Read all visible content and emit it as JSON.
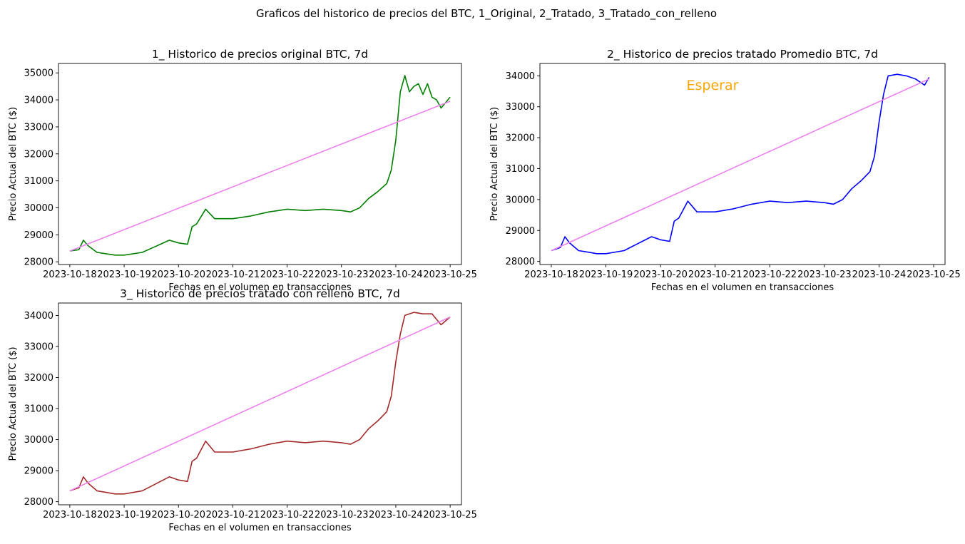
{
  "figure": {
    "suptitle": "Graficos del historico de precios del BTC, 1_Original, 2_Tratado, 3_Tratado_con_relleno"
  },
  "colors": {
    "trend": "#ee82ee",
    "panel1": "#008000",
    "panel2": "#0000ff",
    "panel3": "#a52a2a",
    "annotation": "#ffa500"
  },
  "chart_data": [
    {
      "type": "line",
      "title": "1_ Historico de precios original BTC, 7d",
      "xlabel": "Fechas en el volumen en transacciones",
      "ylabel": "Precio Actual del BTC ($)",
      "x_ticks": [
        "2023-10-18",
        "2023-10-19",
        "2023-10-20",
        "2023-10-21",
        "2023-10-22",
        "2023-10-23",
        "2023-10-24",
        "2023-10-25"
      ],
      "y_ticks": [
        28000,
        29000,
        30000,
        31000,
        32000,
        33000,
        34000,
        35000
      ],
      "ylim": [
        27900,
        35350
      ],
      "grid": false,
      "series": [
        {
          "color": "#008000",
          "x": [
            "2023-10-18T00:00",
            "2023-10-18T04:00",
            "2023-10-18T06:00",
            "2023-10-18T08:00",
            "2023-10-18T12:00",
            "2023-10-18T16:00",
            "2023-10-18T20:00",
            "2023-10-19T00:00",
            "2023-10-19T08:00",
            "2023-10-19T12:00",
            "2023-10-19T16:00",
            "2023-10-19T20:00",
            "2023-10-20T00:00",
            "2023-10-20T04:00",
            "2023-10-20T06:00",
            "2023-10-20T08:00",
            "2023-10-20T12:00",
            "2023-10-20T16:00",
            "2023-10-21T00:00",
            "2023-10-21T08:00",
            "2023-10-21T16:00",
            "2023-10-22T00:00",
            "2023-10-22T08:00",
            "2023-10-22T16:00",
            "2023-10-23T00:00",
            "2023-10-23T04:00",
            "2023-10-23T08:00",
            "2023-10-23T12:00",
            "2023-10-23T16:00",
            "2023-10-23T20:00",
            "2023-10-23T22:00",
            "2023-10-24T00:00",
            "2023-10-24T02:00",
            "2023-10-24T04:00",
            "2023-10-24T06:00",
            "2023-10-24T08:00",
            "2023-10-24T10:00",
            "2023-10-24T12:00",
            "2023-10-24T14:00",
            "2023-10-24T16:00",
            "2023-10-24T18:00",
            "2023-10-24T20:00",
            "2023-10-24T22:00",
            "2023-10-25T00:00"
          ],
          "values": [
            28400,
            28450,
            28800,
            28600,
            28350,
            28300,
            28250,
            28250,
            28350,
            28500,
            28650,
            28800,
            28700,
            28650,
            29300,
            29400,
            29950,
            29600,
            29600,
            29700,
            29850,
            29950,
            29900,
            29950,
            29900,
            29850,
            30000,
            30350,
            30600,
            30900,
            31400,
            32500,
            34300,
            34900,
            34300,
            34500,
            34600,
            34200,
            34600,
            34100,
            34000,
            33700,
            33900,
            34100
          ]
        },
        {
          "color": "#ee82ee",
          "x": [
            "2023-10-18T00:00",
            "2023-10-25T00:00"
          ],
          "values": [
            28400,
            33950
          ]
        }
      ]
    },
    {
      "type": "line",
      "title": "2_ Historico de precios tratado Promedio BTC, 7d",
      "xlabel": "Fechas en el volumen en transacciones",
      "ylabel": "Precio Actual del BTC ($)",
      "annotation": "Esperar",
      "x_ticks": [
        "2023-10-18",
        "2023-10-19",
        "2023-10-20",
        "2023-10-21",
        "2023-10-22",
        "2023-10-23",
        "2023-10-24",
        "2023-10-25"
      ],
      "y_ticks": [
        28000,
        29000,
        30000,
        31000,
        32000,
        33000,
        34000
      ],
      "ylim": [
        27900,
        34400
      ],
      "grid": false,
      "series": [
        {
          "color": "#0000ff",
          "x": [
            "2023-10-18T00:00",
            "2023-10-18T04:00",
            "2023-10-18T06:00",
            "2023-10-18T08:00",
            "2023-10-18T12:00",
            "2023-10-18T16:00",
            "2023-10-18T20:00",
            "2023-10-19T00:00",
            "2023-10-19T08:00",
            "2023-10-19T12:00",
            "2023-10-19T16:00",
            "2023-10-19T20:00",
            "2023-10-20T00:00",
            "2023-10-20T04:00",
            "2023-10-20T06:00",
            "2023-10-20T08:00",
            "2023-10-20T12:00",
            "2023-10-20T16:00",
            "2023-10-21T00:00",
            "2023-10-21T08:00",
            "2023-10-21T16:00",
            "2023-10-22T00:00",
            "2023-10-22T08:00",
            "2023-10-22T16:00",
            "2023-10-23T00:00",
            "2023-10-23T04:00",
            "2023-10-23T08:00",
            "2023-10-23T12:00",
            "2023-10-23T16:00",
            "2023-10-23T20:00",
            "2023-10-23T22:00",
            "2023-10-24T00:00",
            "2023-10-24T02:00",
            "2023-10-24T04:00",
            "2023-10-24T08:00",
            "2023-10-24T12:00",
            "2023-10-24T16:00",
            "2023-10-24T20:00",
            "2023-10-24T22:00"
          ],
          "values": [
            28350,
            28450,
            28800,
            28600,
            28350,
            28300,
            28250,
            28250,
            28350,
            28500,
            28650,
            28800,
            28700,
            28650,
            29300,
            29400,
            29950,
            29600,
            29600,
            29700,
            29850,
            29950,
            29900,
            29950,
            29900,
            29850,
            30000,
            30350,
            30600,
            30900,
            31400,
            32500,
            33400,
            34000,
            34050,
            34000,
            33900,
            33700,
            33950
          ]
        },
        {
          "color": "#ee82ee",
          "x": [
            "2023-10-18T00:00",
            "2023-10-24T22:00"
          ],
          "values": [
            28350,
            33900
          ]
        }
      ]
    },
    {
      "type": "line",
      "title": "3_ Historico de precios tratado con relleno BTC, 7d",
      "xlabel": "Fechas en el volumen en transacciones",
      "ylabel": "Precio Actual del BTC ($)",
      "x_ticks": [
        "2023-10-18",
        "2023-10-19",
        "2023-10-20",
        "2023-10-21",
        "2023-10-22",
        "2023-10-23",
        "2023-10-24",
        "2023-10-25"
      ],
      "y_ticks": [
        28000,
        29000,
        30000,
        31000,
        32000,
        33000,
        34000
      ],
      "ylim": [
        27900,
        34400
      ],
      "grid": false,
      "series": [
        {
          "color": "#a52a2a",
          "x": [
            "2023-10-18T00:00",
            "2023-10-18T04:00",
            "2023-10-18T06:00",
            "2023-10-18T08:00",
            "2023-10-18T12:00",
            "2023-10-18T16:00",
            "2023-10-18T20:00",
            "2023-10-19T00:00",
            "2023-10-19T08:00",
            "2023-10-19T12:00",
            "2023-10-19T16:00",
            "2023-10-19T20:00",
            "2023-10-20T00:00",
            "2023-10-20T04:00",
            "2023-10-20T06:00",
            "2023-10-20T08:00",
            "2023-10-20T12:00",
            "2023-10-20T16:00",
            "2023-10-21T00:00",
            "2023-10-21T08:00",
            "2023-10-21T16:00",
            "2023-10-22T00:00",
            "2023-10-22T08:00",
            "2023-10-22T16:00",
            "2023-10-23T00:00",
            "2023-10-23T04:00",
            "2023-10-23T08:00",
            "2023-10-23T12:00",
            "2023-10-23T16:00",
            "2023-10-23T20:00",
            "2023-10-23T22:00",
            "2023-10-24T00:00",
            "2023-10-24T02:00",
            "2023-10-24T04:00",
            "2023-10-24T08:00",
            "2023-10-24T12:00",
            "2023-10-24T16:00",
            "2023-10-24T20:00",
            "2023-10-25T00:00"
          ],
          "values": [
            28350,
            28450,
            28800,
            28600,
            28350,
            28300,
            28250,
            28250,
            28350,
            28500,
            28650,
            28800,
            28700,
            28650,
            29300,
            29400,
            29950,
            29600,
            29600,
            29700,
            29850,
            29950,
            29900,
            29950,
            29900,
            29850,
            30000,
            30350,
            30600,
            30900,
            31400,
            32500,
            33400,
            34000,
            34100,
            34050,
            34050,
            33700,
            33950
          ]
        },
        {
          "color": "#ee82ee",
          "x": [
            "2023-10-18T00:00",
            "2023-10-25T00:00"
          ],
          "values": [
            28350,
            33950
          ]
        }
      ]
    }
  ]
}
